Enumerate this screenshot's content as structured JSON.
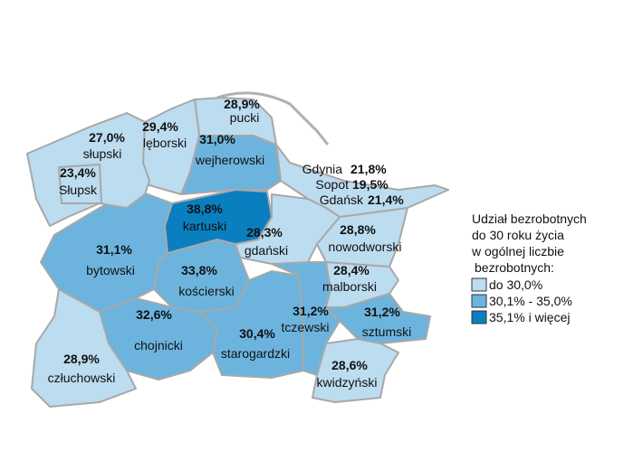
{
  "regions": [
    {
      "name": "słupski",
      "value": 27.0,
      "value_label": "27,0%",
      "color": "#bcdcf0"
    },
    {
      "name": "Słupsk",
      "value": 23.4,
      "value_label": "23,4%",
      "color": "#bcdcf0"
    },
    {
      "name": "lęborski",
      "value": 29.4,
      "value_label": "29,4%",
      "color": "#bcdcf0"
    },
    {
      "name": "pucki",
      "value": 28.9,
      "value_label": "28,9%",
      "color": "#bcdcf0"
    },
    {
      "name": "wejherowski",
      "value": 31.0,
      "value_label": "31,0%",
      "color": "#6cb4de"
    },
    {
      "name": "kartuski",
      "value": 38.8,
      "value_label": "38,8%",
      "color": "#0a7fc0"
    },
    {
      "name": "gdański",
      "value": 28.3,
      "value_label": "28,3%",
      "color": "#bcdcf0"
    },
    {
      "name": "nowodworski",
      "value": 28.8,
      "value_label": "28,8%",
      "color": "#bcdcf0"
    },
    {
      "name": "kościerski",
      "value": 33.8,
      "value_label": "33,8%",
      "color": "#6cb4de"
    },
    {
      "name": "bytowski",
      "value": 31.1,
      "value_label": "31,1%",
      "color": "#6cb4de"
    },
    {
      "name": "chojnicki",
      "value": 32.6,
      "value_label": "32,6%",
      "color": "#6cb4de"
    },
    {
      "name": "starogardzki",
      "value": 30.4,
      "value_label": "30,4%",
      "color": "#6cb4de"
    },
    {
      "name": "tczewski",
      "value": 31.2,
      "value_label": "31,2%",
      "color": "#6cb4de"
    },
    {
      "name": "malborski",
      "value": 28.4,
      "value_label": "28,4%",
      "color": "#bcdcf0"
    },
    {
      "name": "sztumski",
      "value": 31.2,
      "value_label": "31,2%",
      "color": "#6cb4de"
    },
    {
      "name": "kwidzyński",
      "value": 28.6,
      "value_label": "28,6%",
      "color": "#bcdcf0"
    },
    {
      "name": "człuchowski",
      "value": 28.9,
      "value_label": "28,9%",
      "color": "#bcdcf0"
    }
  ],
  "cities": [
    {
      "name": "Gdynia",
      "value": 21.8,
      "value_label": "21,8%"
    },
    {
      "name": "Sopot",
      "value": 19.5,
      "value_label": "19,5%"
    },
    {
      "name": "Gdańsk",
      "value": 21.4,
      "value_label": "21,4%"
    }
  ],
  "city_area_color": "#bcdcf0",
  "legend": {
    "title": [
      "Udział bezrobotnych",
      "do 30 roku życia",
      "w ogólnej liczbie",
      "bezrobotnych:"
    ],
    "items": [
      {
        "label": "do 30,0%",
        "color": "#bcdcf0"
      },
      {
        "label": "30,1% - 35,0%",
        "color": "#6cb4de"
      },
      {
        "label": "35,1% i więcej",
        "color": "#0a7fc0"
      }
    ]
  }
}
